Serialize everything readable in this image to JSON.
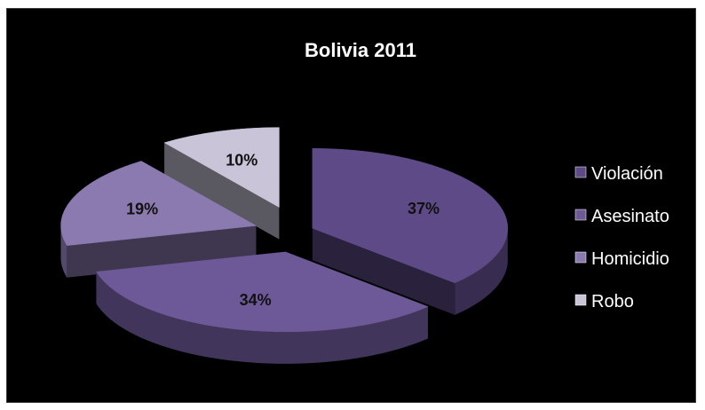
{
  "chart_data": {
    "type": "pie",
    "title": "Bolivia 2011",
    "categories": [
      "Violación",
      "Asesinato",
      "Homicidio",
      "Robo"
    ],
    "values": [
      37,
      34,
      19,
      10
    ],
    "data_labels": [
      "37%",
      "34%",
      "19%",
      "10%"
    ],
    "colors": [
      "#5e4a86",
      "#6d5998",
      "#8a7ab0",
      "#c9c4d8"
    ],
    "exploded": true,
    "three_d": true,
    "legend_position": "right",
    "background": "#000000"
  }
}
